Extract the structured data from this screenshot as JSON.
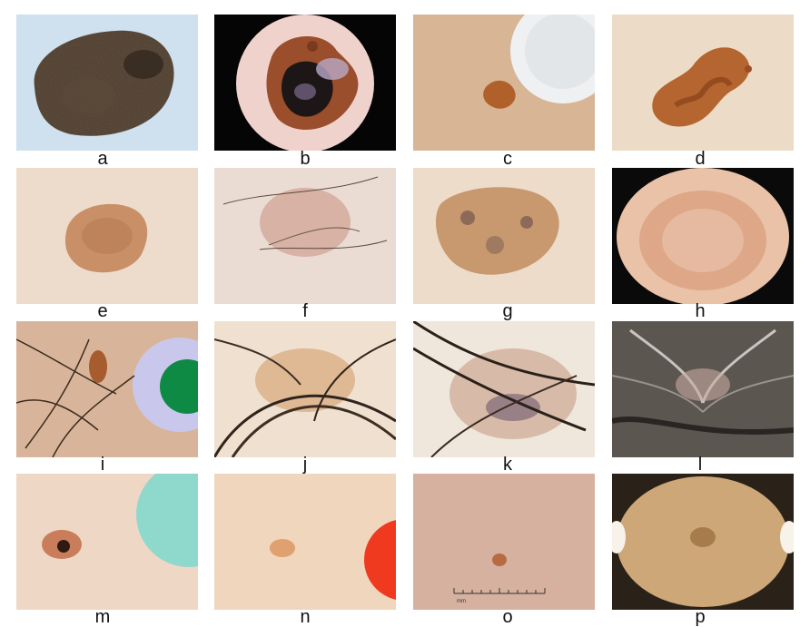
{
  "panels": [
    {
      "label": "a"
    },
    {
      "label": "b"
    },
    {
      "label": "c"
    },
    {
      "label": "d"
    },
    {
      "label": "e"
    },
    {
      "label": "f"
    },
    {
      "label": "g"
    },
    {
      "label": "h"
    },
    {
      "label": "i"
    },
    {
      "label": "j"
    },
    {
      "label": "k"
    },
    {
      "label": "l"
    },
    {
      "label": "m"
    },
    {
      "label": "n"
    },
    {
      "label": "o"
    },
    {
      "label": "p"
    }
  ],
  "scale_text": "mm"
}
